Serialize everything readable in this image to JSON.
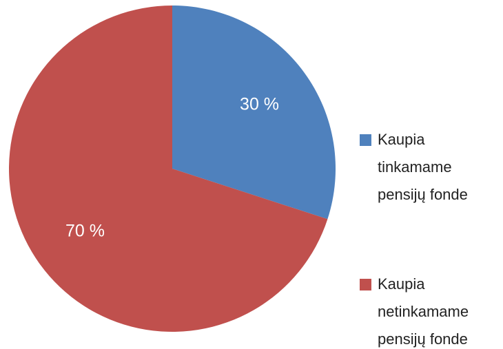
{
  "chart_data": {
    "type": "pie",
    "categories": [
      "Kaupia tinkamame pensijų fonde",
      "Kaupia netinkamame pensijų fonde"
    ],
    "values": [
      30,
      70
    ],
    "value_labels": [
      "30 %",
      "70 %"
    ],
    "colors": [
      "#4f81bd",
      "#c0504d"
    ],
    "legend": "right"
  }
}
